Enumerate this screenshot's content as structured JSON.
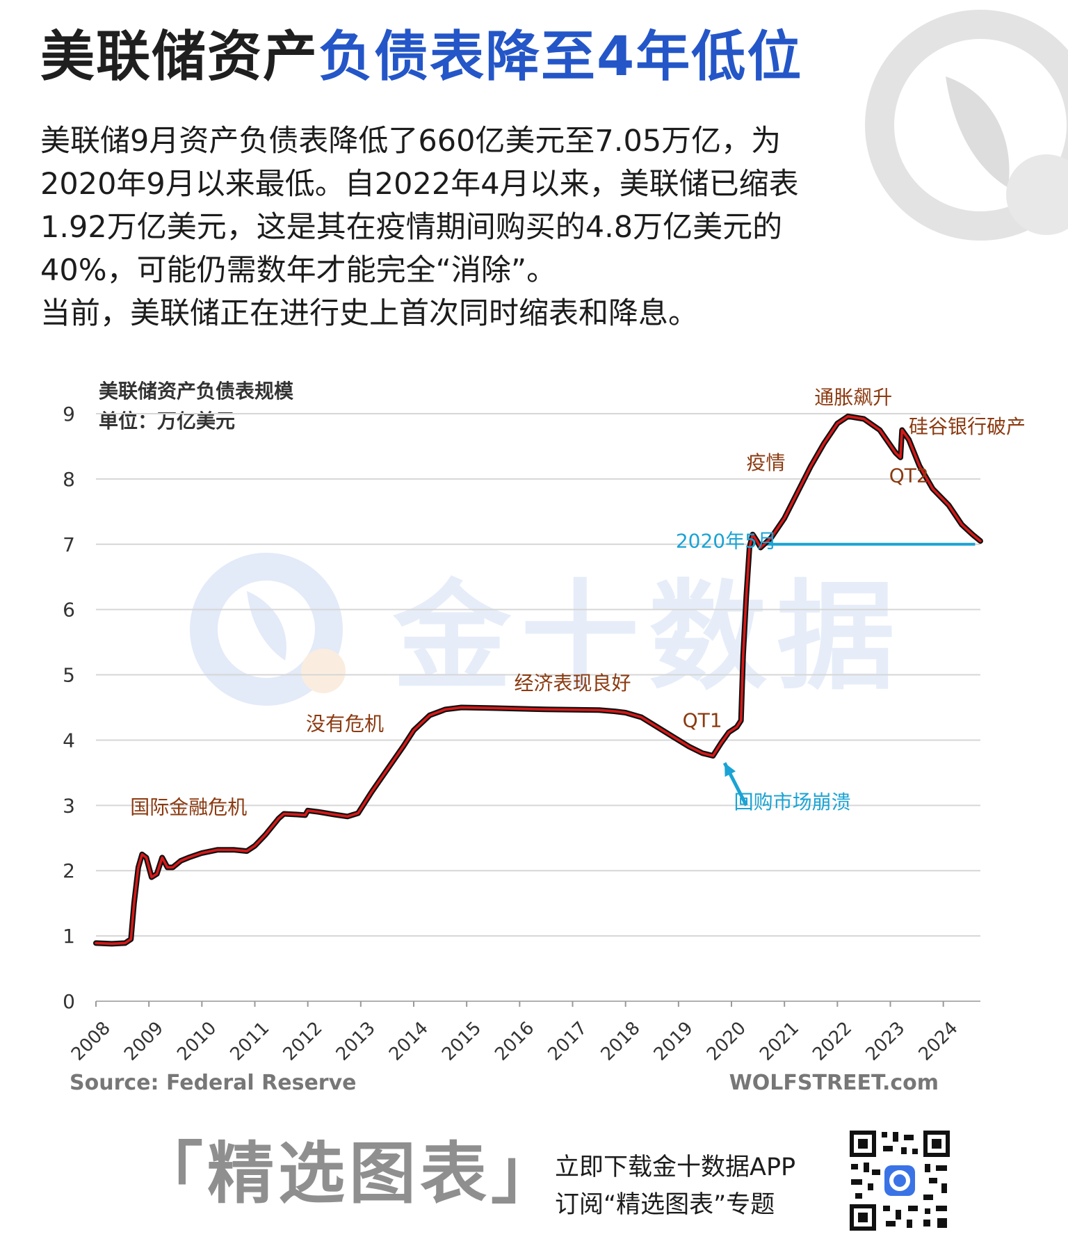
{
  "header": {
    "title_part1": "美联储资产",
    "title_part2": "负债表降至4年低位",
    "summary_lines": [
      "美联储9月资产负债表降低了660亿美元至7.05万亿，为",
      "2020年9月以来最低。自2022年4月以来，美联储已缩表",
      "1.92万亿美元，这是其在疫情期间购买的4.8万亿美元的",
      "40%，可能仍需数年才能完全“消除”。",
      "当前，美联储正在进行史上首次同时缩表和降息。"
    ]
  },
  "watermark": {
    "text": "金十数据"
  },
  "chart_data": {
    "type": "line",
    "title": "美联储资产负债表规模",
    "subtitle": "单位：万亿美元",
    "ylim": [
      0,
      9
    ],
    "yticks": [
      0,
      1,
      2,
      3,
      4,
      5,
      6,
      7,
      8,
      9
    ],
    "xlim": [
      2008.0,
      2024.7
    ],
    "xticks": [
      "2008",
      "2009",
      "2010",
      "2011",
      "2012",
      "2013",
      "2014",
      "2015",
      "2016",
      "2017",
      "2018",
      "2019",
      "2020",
      "2021",
      "2022",
      "2023",
      "2024"
    ],
    "grid": true,
    "series": [
      {
        "color": "#d81818",
        "points": [
          [
            2008.0,
            0.89
          ],
          [
            2008.3,
            0.88
          ],
          [
            2008.55,
            0.89
          ],
          [
            2008.66,
            0.95
          ],
          [
            2008.72,
            1.5
          ],
          [
            2008.8,
            2.05
          ],
          [
            2008.87,
            2.25
          ],
          [
            2008.95,
            2.2
          ],
          [
            2009.05,
            1.9
          ],
          [
            2009.15,
            1.95
          ],
          [
            2009.25,
            2.2
          ],
          [
            2009.35,
            2.05
          ],
          [
            2009.45,
            2.05
          ],
          [
            2009.6,
            2.15
          ],
          [
            2009.75,
            2.2
          ],
          [
            2010.0,
            2.27
          ],
          [
            2010.3,
            2.32
          ],
          [
            2010.6,
            2.32
          ],
          [
            2010.85,
            2.3
          ],
          [
            2011.0,
            2.38
          ],
          [
            2011.2,
            2.55
          ],
          [
            2011.45,
            2.8
          ],
          [
            2011.55,
            2.87
          ],
          [
            2011.8,
            2.86
          ],
          [
            2011.95,
            2.85
          ],
          [
            2012.0,
            2.92
          ],
          [
            2012.2,
            2.9
          ],
          [
            2012.5,
            2.86
          ],
          [
            2012.75,
            2.83
          ],
          [
            2012.95,
            2.88
          ],
          [
            2013.2,
            3.2
          ],
          [
            2013.5,
            3.55
          ],
          [
            2013.8,
            3.9
          ],
          [
            2014.0,
            4.15
          ],
          [
            2014.3,
            4.38
          ],
          [
            2014.6,
            4.47
          ],
          [
            2014.9,
            4.5
          ],
          [
            2015.5,
            4.49
          ],
          [
            2016.5,
            4.47
          ],
          [
            2017.5,
            4.46
          ],
          [
            2017.8,
            4.44
          ],
          [
            2018.0,
            4.42
          ],
          [
            2018.3,
            4.35
          ],
          [
            2018.6,
            4.2
          ],
          [
            2018.9,
            4.05
          ],
          [
            2019.2,
            3.9
          ],
          [
            2019.45,
            3.8
          ],
          [
            2019.65,
            3.76
          ],
          [
            2019.8,
            3.95
          ],
          [
            2019.95,
            4.12
          ],
          [
            2020.1,
            4.2
          ],
          [
            2020.18,
            4.3
          ],
          [
            2020.22,
            5.3
          ],
          [
            2020.28,
            6.2
          ],
          [
            2020.34,
            6.95
          ],
          [
            2020.4,
            7.15
          ],
          [
            2020.48,
            7.05
          ],
          [
            2020.55,
            6.95
          ],
          [
            2020.75,
            7.1
          ],
          [
            2021.0,
            7.4
          ],
          [
            2021.25,
            7.8
          ],
          [
            2021.5,
            8.2
          ],
          [
            2021.75,
            8.55
          ],
          [
            2022.0,
            8.85
          ],
          [
            2022.2,
            8.96
          ],
          [
            2022.5,
            8.92
          ],
          [
            2022.8,
            8.75
          ],
          [
            2023.1,
            8.4
          ],
          [
            2023.19,
            8.33
          ],
          [
            2023.22,
            8.75
          ],
          [
            2023.35,
            8.6
          ],
          [
            2023.55,
            8.2
          ],
          [
            2023.8,
            7.85
          ],
          [
            2024.1,
            7.6
          ],
          [
            2024.35,
            7.3
          ],
          [
            2024.55,
            7.15
          ],
          [
            2024.7,
            7.05
          ]
        ]
      }
    ],
    "reference_line": {
      "y": 7.0,
      "x_start": 2020.48,
      "x_end": 2024.6,
      "color": "#1aa3d4"
    },
    "annotations": [
      {
        "text": "国际金融危机",
        "x": 2009.75,
        "y": 2.87,
        "color": "#8b3a10"
      },
      {
        "text": "没有危机",
        "x": 2012.7,
        "y": 4.15,
        "color": "#8b3a10"
      },
      {
        "text": "经济表现良好",
        "x": 2017.0,
        "y": 4.77,
        "color": "#8b3a10"
      },
      {
        "text": "QT1",
        "x": 2019.45,
        "y": 4.2,
        "color": "#8b3a10"
      },
      {
        "text": "疫情",
        "x": 2020.65,
        "y": 8.15,
        "color": "#8b3a10"
      },
      {
        "text": "通胀飙升",
        "x": 2022.3,
        "y": 9.15,
        "color": "#8b3a10"
      },
      {
        "text": "硅谷银行破产",
        "x": 2024.45,
        "y": 8.7,
        "color": "#8b3a10"
      },
      {
        "text": "QT2",
        "x": 2023.35,
        "y": 7.95,
        "color": "#8b3a10"
      },
      {
        "text": "2020年5月",
        "x": 2019.9,
        "y": 6.95,
        "color": "#1aa3d4"
      },
      {
        "text": "回购市场崩溃",
        "x": 2021.15,
        "y": 2.95,
        "color": "#1aa3d4"
      }
    ],
    "arrow": {
      "from": [
        2020.28,
        3.0
      ],
      "to": [
        2019.87,
        3.65
      ],
      "color": "#1aa3d4"
    },
    "source": "Source: Federal Reserve",
    "brand": "WOLFSTREET.com"
  },
  "footer": {
    "slogan": "「精选图表」",
    "line1": "立即下载金十数据APP",
    "line2": "订阅“精选图表”专题"
  }
}
